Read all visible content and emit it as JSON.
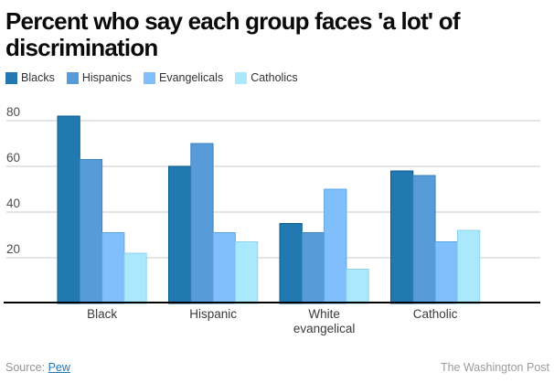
{
  "title": "Percent who say each group faces 'a lot' of discrimination",
  "footer": {
    "source_label": "Source:",
    "source_link": "Pew",
    "credit": "The Washington Post"
  },
  "colors": {
    "grid": "#dcdcdc",
    "axis": "#000000",
    "link": "#2077b4"
  },
  "chart_data": {
    "type": "bar",
    "title": "Percent who say each group faces 'a lot' of discrimination",
    "categories": [
      "Black",
      "Hispanic",
      "White evangelical",
      "Catholic"
    ],
    "series": [
      {
        "name": "Blacks",
        "color": "#2278b1",
        "stroke": "#0d5e90",
        "values": [
          82,
          60,
          35,
          58
        ]
      },
      {
        "name": "Hispanics",
        "color": "#579bd8",
        "stroke": "#3c83c0",
        "values": [
          63,
          70,
          31,
          56
        ]
      },
      {
        "name": "Evangelicals",
        "color": "#80befc",
        "stroke": "#5ea7e6",
        "values": [
          31,
          31,
          50,
          27
        ]
      },
      {
        "name": "Catholics",
        "color": "#aae9fd",
        "stroke": "#8fd4ea",
        "values": [
          22,
          27,
          15,
          32
        ]
      }
    ],
    "xlabel": "",
    "ylabel": "",
    "ylim": [
      0,
      88
    ],
    "yticks": [
      20,
      40,
      60,
      80
    ],
    "grid": true,
    "legend_position": "top-left"
  }
}
